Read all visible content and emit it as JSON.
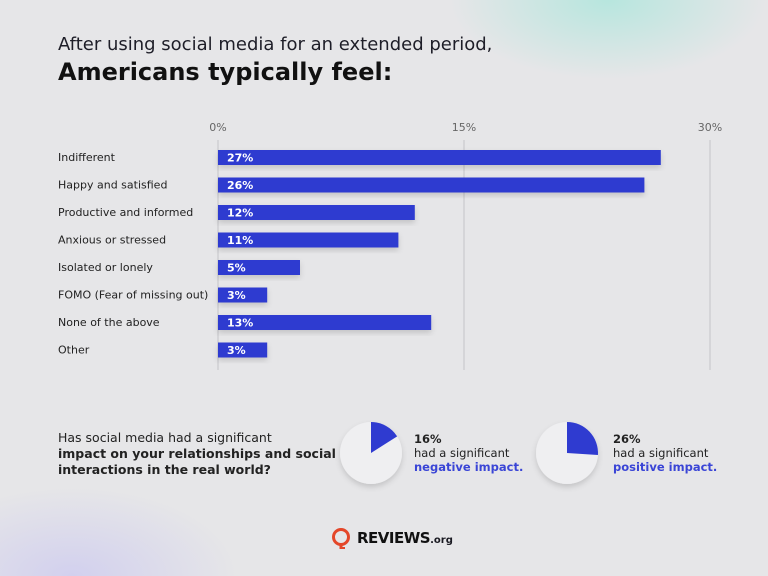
{
  "chart_data": {
    "type": "bar",
    "orientation": "horizontal",
    "title_line1": "After using social media for an extended period,",
    "title_line2": "Americans typically feel:",
    "categories": [
      "Indifferent",
      "Happy and satisfied",
      "Productive and informed",
      "Anxious or stressed",
      "Isolated or lonely",
      "FOMO (Fear of missing out)",
      "None of the above",
      "Other"
    ],
    "values": [
      27,
      26,
      12,
      11,
      5,
      3,
      13,
      3
    ],
    "data_labels": [
      "27%",
      "26%",
      "12%",
      "11%",
      "5%",
      "3%",
      "13%",
      "3%"
    ],
    "xlim": [
      0,
      30
    ],
    "x_ticks": [
      0,
      15,
      30
    ],
    "x_tick_labels": [
      "0%",
      "15%",
      "30%"
    ],
    "grid": true,
    "bar_color": "#2f3bd0"
  },
  "question": {
    "line1": "Has social media had a significant",
    "line2": "impact on your relationships and social",
    "line3": "interactions in the real world?"
  },
  "pies": [
    {
      "value": 16,
      "pct": "16%",
      "text": "had a significant",
      "highlight": "negative impact."
    },
    {
      "value": 26,
      "pct": "26%",
      "text": "had a significant",
      "highlight": "positive impact."
    }
  ],
  "colors": {
    "accent": "#2f3bd0",
    "pie_bg": "#efeff1",
    "logo": "#e4472a"
  },
  "logo": {
    "word": "REVIEWS",
    "suffix": ".org"
  }
}
